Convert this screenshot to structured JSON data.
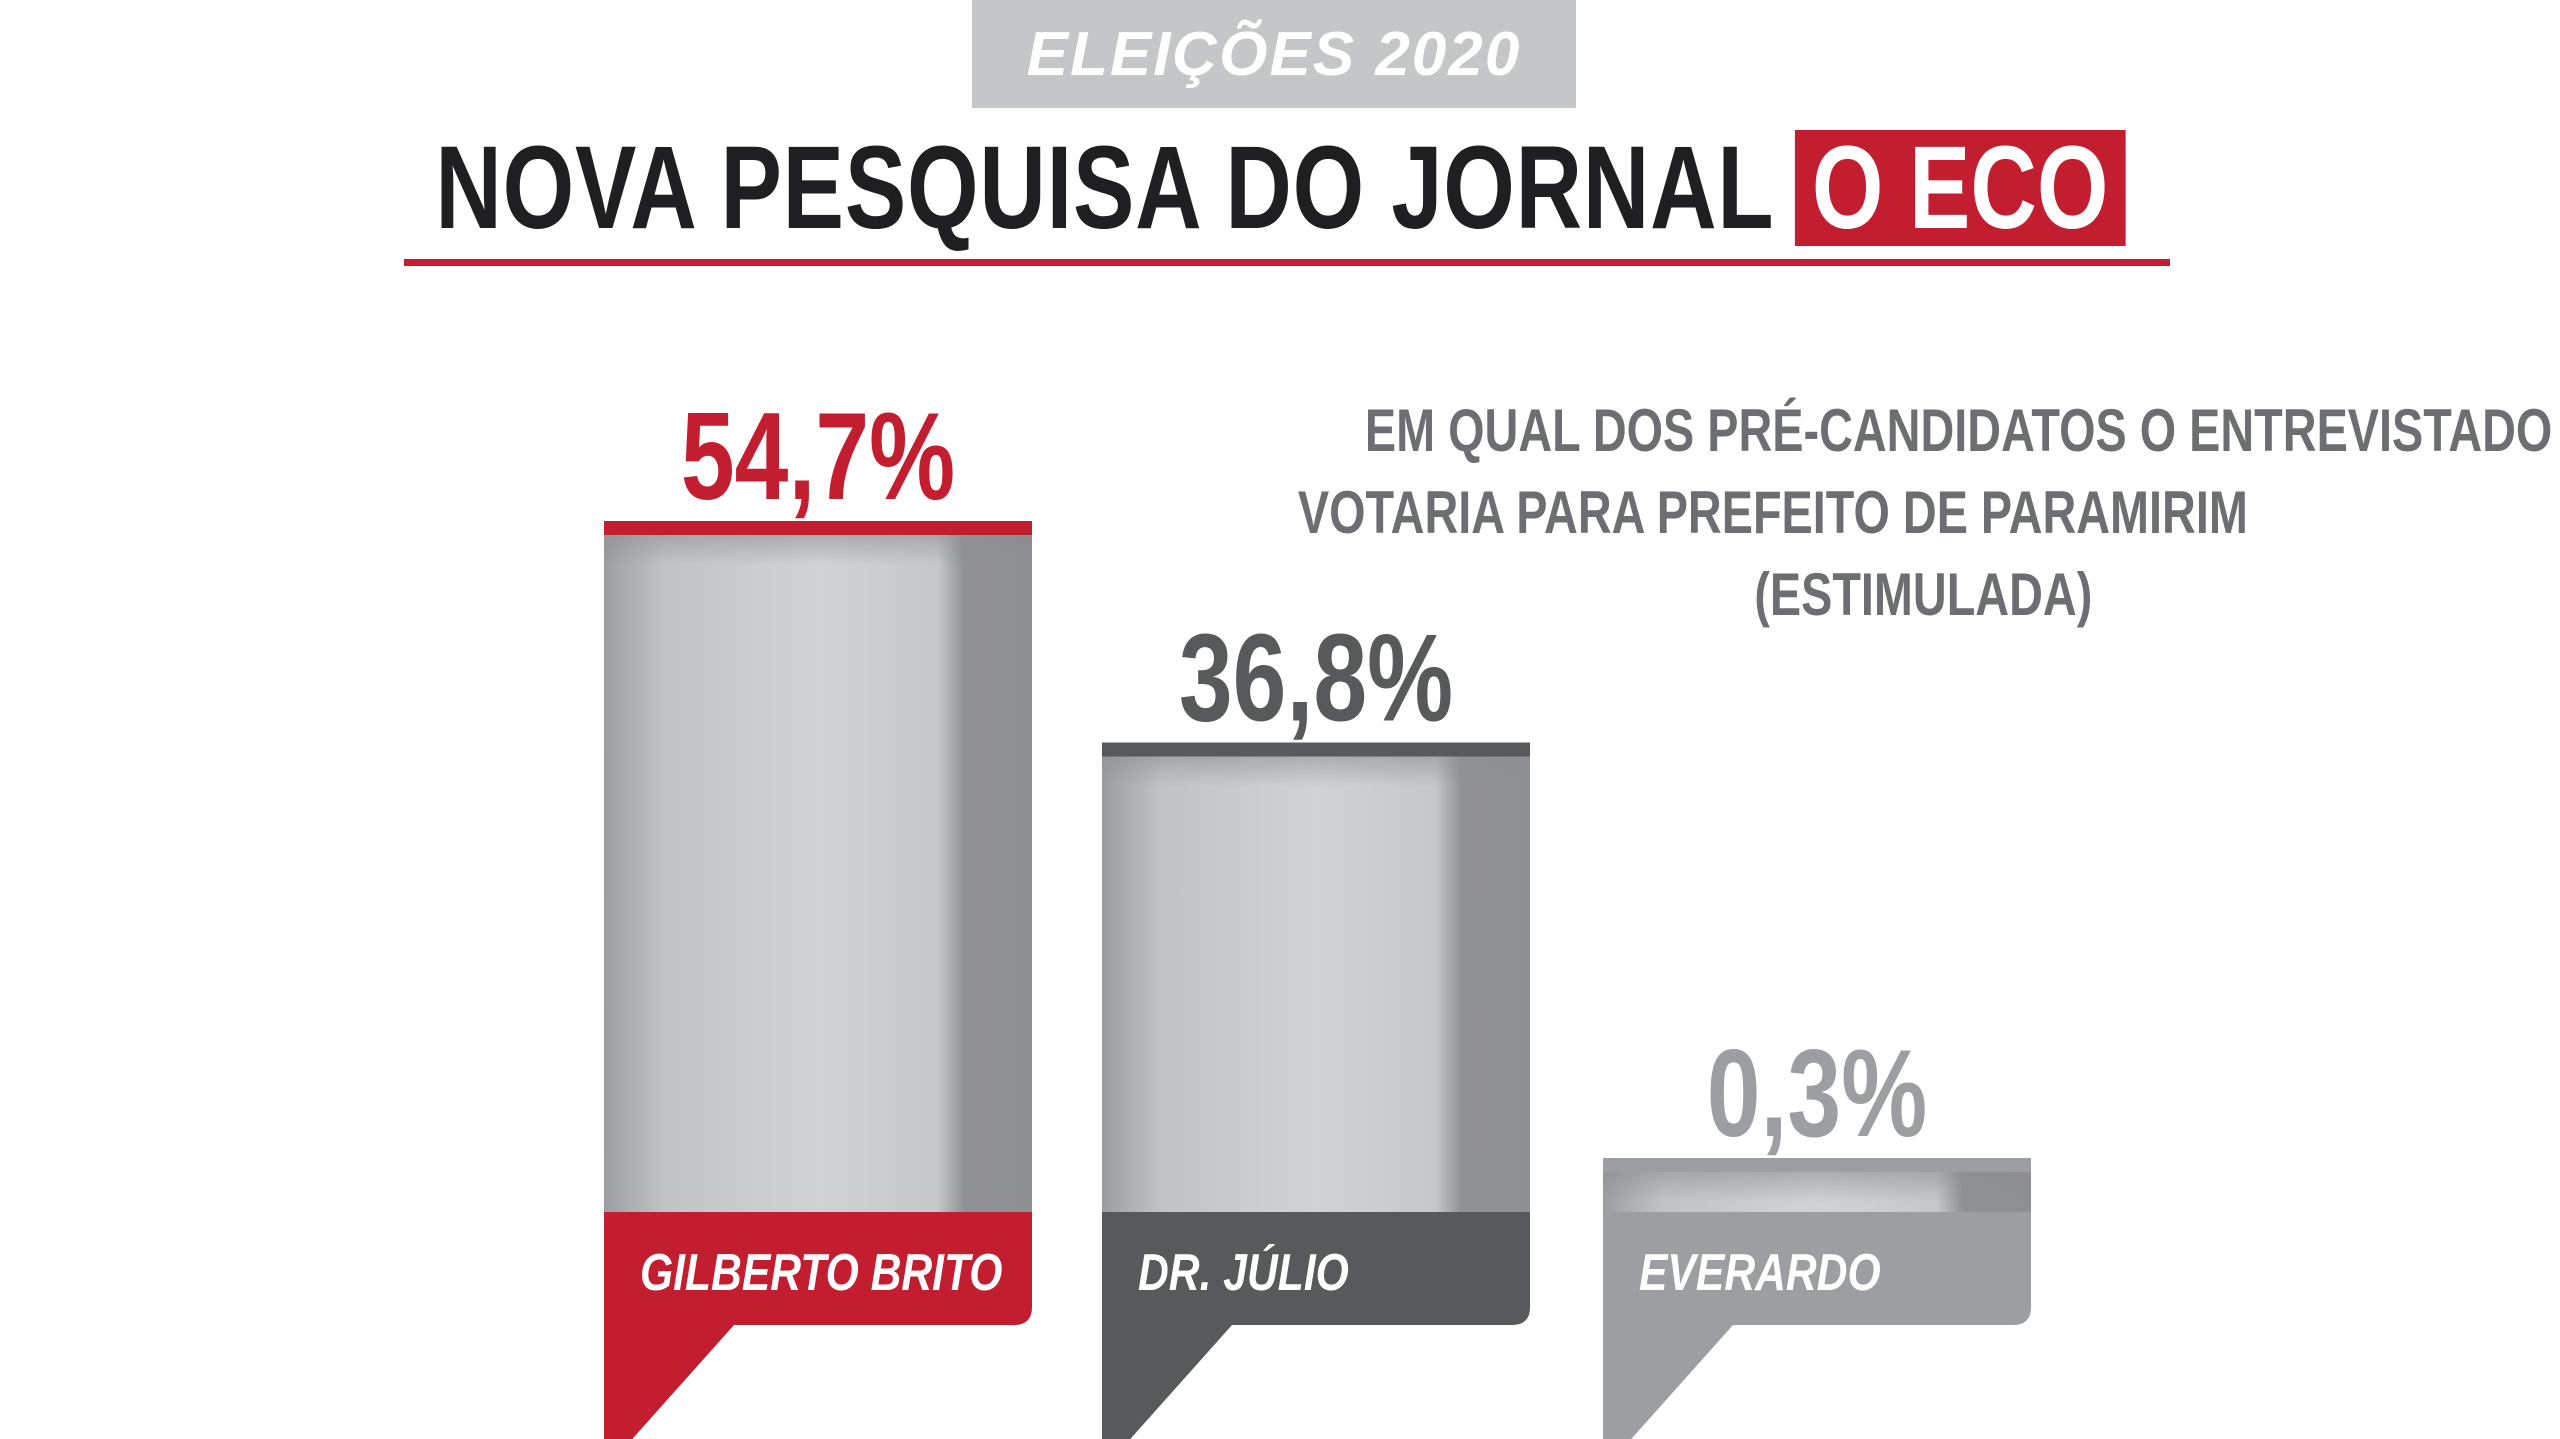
{
  "header": {
    "tag": "ELEIÇÕES 2020",
    "headline": "NOVA PESQUISA DO JORNAL",
    "brand": "O ECO"
  },
  "question": {
    "lines": [
      "EM QUAL DOS PRÉ-CANDIDATOS O ENTREVISTADO",
      "VOTARIA PARA PREFEITO DE PARAMIRIM",
      "(ESTIMULADA)"
    ]
  },
  "colors": {
    "accent": "#c21e2f",
    "dark": "#58595b",
    "light": "#9d9ea1",
    "bar_face": "#c9cacc"
  },
  "chart_data": {
    "type": "bar",
    "categories": [
      "GILBERTO BRITO",
      "DR. JÚLIO",
      "EVERARDO"
    ],
    "values": [
      54.7,
      36.8,
      0.3
    ],
    "value_labels": [
      "54,7%",
      "36,8%",
      "0,3%"
    ],
    "unit": "%",
    "grid": false,
    "legend": "none"
  }
}
